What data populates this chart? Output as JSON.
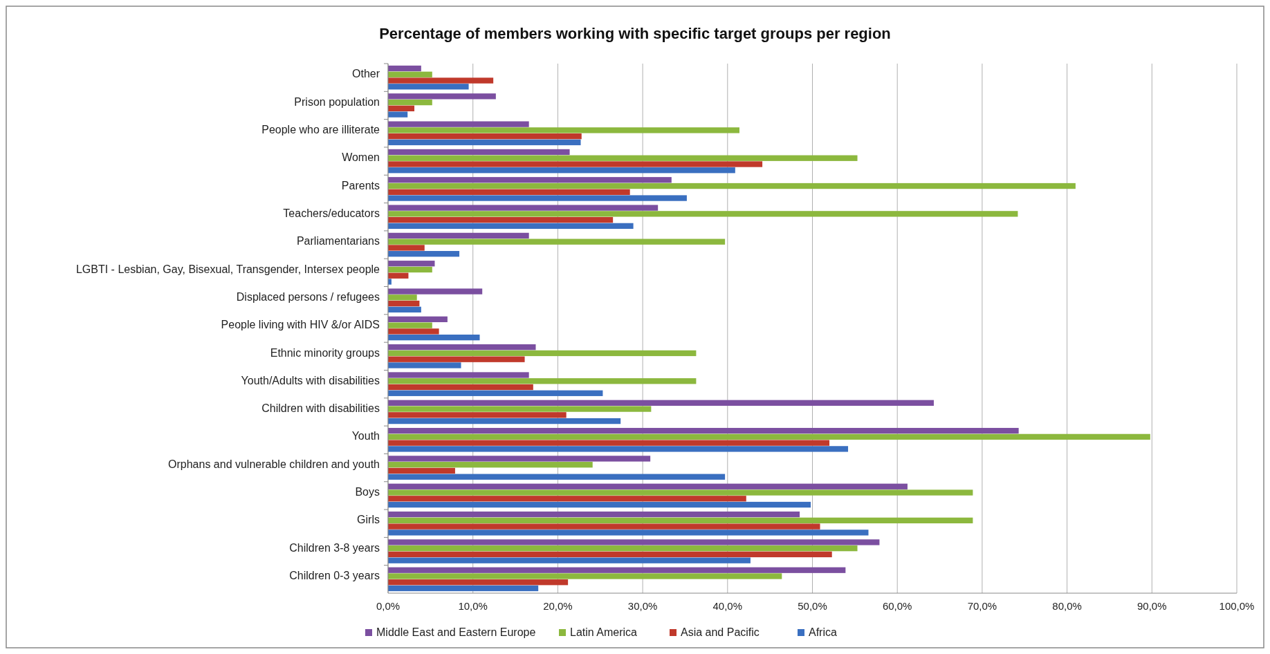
{
  "chart_data": {
    "type": "bar",
    "orientation": "horizontal",
    "title": "Percentage of members working with specific target groups per region",
    "categories": [
      "Other",
      "Prison population",
      "People who are illiterate",
      "Women",
      "Parents",
      "Teachers/educators",
      "Parliamentarians",
      "LGBTI - Lesbian, Gay, Bisexual, Transgender, Intersex people",
      "Displaced persons / refugees",
      "People living with HIV &/or AIDS",
      "Ethnic minority groups",
      "Youth/Adults with disabilities",
      "Children with disabilities",
      "Youth",
      "Orphans and vulnerable children and youth",
      "Boys",
      "Girls",
      "Children 3-8 years",
      "Children 0-3 years"
    ],
    "series": [
      {
        "name": "Middle East and Eastern Europe",
        "color": "#7b4fa0",
        "values": [
          3.9,
          12.7,
          16.6,
          21.4,
          33.4,
          31.8,
          16.6,
          5.5,
          11.1,
          7.0,
          17.4,
          16.6,
          64.3,
          74.3,
          30.9,
          61.2,
          48.5,
          57.9,
          53.9
        ]
      },
      {
        "name": "Latin America",
        "color": "#8cb83e",
        "values": [
          5.2,
          5.2,
          41.4,
          55.3,
          81.0,
          74.2,
          39.7,
          5.2,
          3.4,
          5.2,
          36.3,
          36.3,
          31.0,
          89.8,
          24.1,
          68.9,
          68.9,
          55.3,
          46.4
        ]
      },
      {
        "name": "Asia and Pacific",
        "color": "#c0392b",
        "values": [
          12.4,
          3.1,
          22.8,
          44.1,
          28.5,
          26.5,
          4.3,
          2.4,
          3.7,
          6.0,
          16.1,
          17.1,
          21.0,
          52.0,
          7.9,
          42.2,
          50.9,
          52.3,
          21.2
        ]
      },
      {
        "name": "Africa",
        "color": "#3a6fc0",
        "values": [
          9.5,
          2.3,
          22.7,
          40.9,
          35.2,
          28.9,
          8.4,
          0.4,
          3.9,
          10.8,
          8.6,
          25.3,
          27.4,
          54.2,
          39.7,
          49.8,
          56.6,
          42.7,
          17.7
        ]
      }
    ],
    "xlim": [
      0,
      100
    ],
    "xticks": [
      {
        "value": 0,
        "label": "0,0%"
      },
      {
        "value": 10,
        "label": "10,0%"
      },
      {
        "value": 20,
        "label": "20,0%"
      },
      {
        "value": 30,
        "label": "30,0%"
      },
      {
        "value": 40,
        "label": "40,0%"
      },
      {
        "value": 50,
        "label": "50,0%"
      },
      {
        "value": 60,
        "label": "60,0%"
      },
      {
        "value": 70,
        "label": "70,0%"
      },
      {
        "value": 80,
        "label": "80,0%"
      },
      {
        "value": 90,
        "label": "90,0%"
      },
      {
        "value": 100,
        "label": "100,0%"
      }
    ],
    "grid": "x",
    "legend": "bottom"
  }
}
